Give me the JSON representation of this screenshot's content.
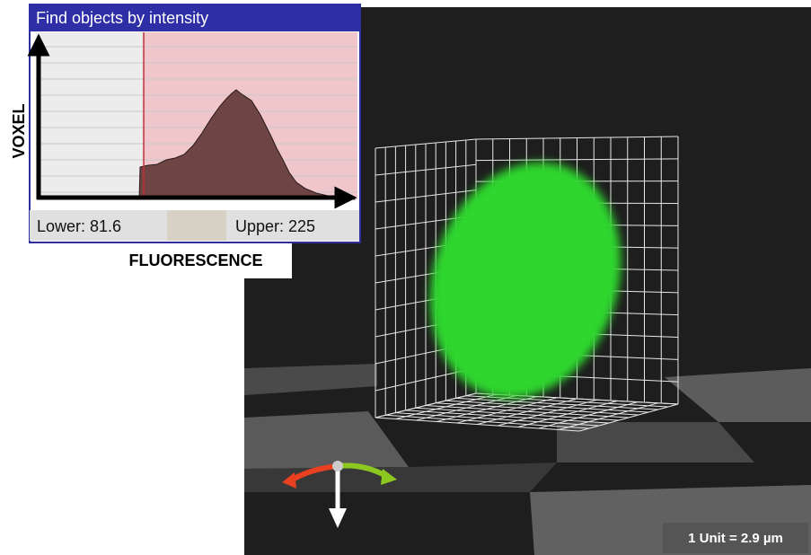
{
  "panel": {
    "title": "Find objects by intensity",
    "y_axis_label": "VOXEL",
    "x_axis_label": "FLUORESCENCE",
    "lower": "Lower: 81.6",
    "upper": "Upper: 225"
  },
  "viewer": {
    "scale": "1 Unit = 2.9 µm"
  }
}
